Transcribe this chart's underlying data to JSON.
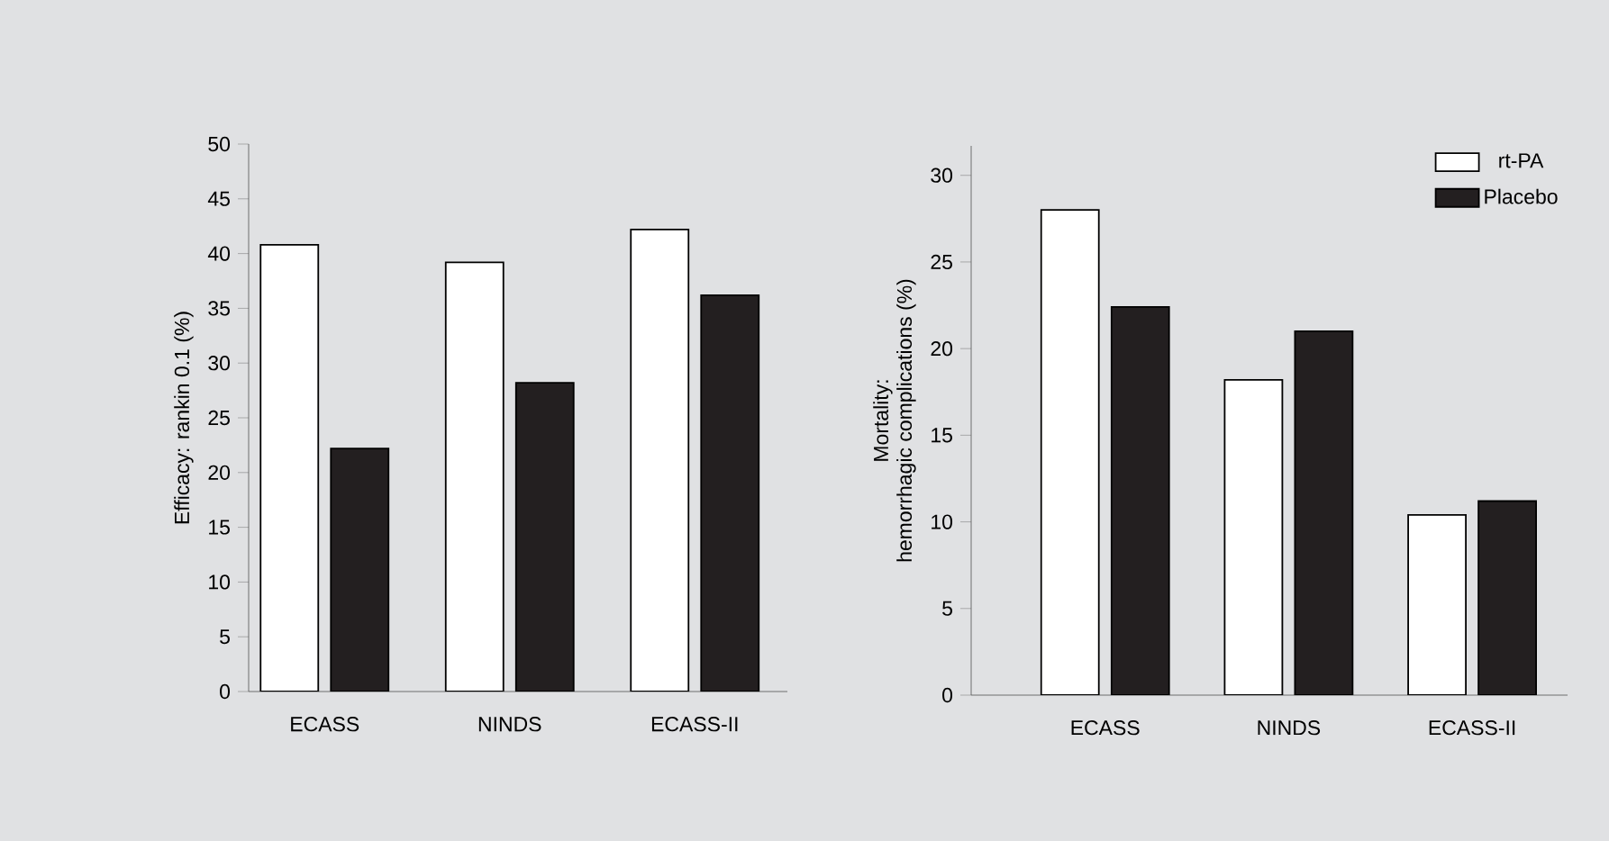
{
  "chart_data": [
    {
      "type": "bar",
      "ylabel": "Efficacy: rankin 0.1 (%)",
      "categories": [
        "ECASS",
        "NINDS",
        "ECASS-II"
      ],
      "ylim": [
        0,
        50
      ],
      "yticks": [
        0,
        5,
        10,
        15,
        20,
        25,
        30,
        35,
        40,
        45,
        50
      ],
      "series": [
        {
          "color": "#ffffff",
          "values": [
            40.8,
            39.2,
            42.2
          ]
        },
        {
          "color": "#231f20",
          "values": [
            22.2,
            28.2,
            36.2
          ]
        }
      ]
    },
    {
      "type": "bar",
      "ylabel": "Mortality:\nhemorrhagic complications (%)",
      "categories": [
        "ECASS",
        "NINDS",
        "ECASS-II"
      ],
      "ylim": [
        0,
        31.7
      ],
      "yticks": [
        0,
        5,
        10,
        15,
        20,
        25,
        30
      ],
      "legend": "top right",
      "series": [
        {
          "name": "rt-PA",
          "color": "#ffffff",
          "values": [
            28.0,
            18.2,
            10.4
          ]
        },
        {
          "name": "Placebo",
          "color": "#231f20",
          "values": [
            22.4,
            21.0,
            11.2
          ]
        }
      ]
    }
  ]
}
